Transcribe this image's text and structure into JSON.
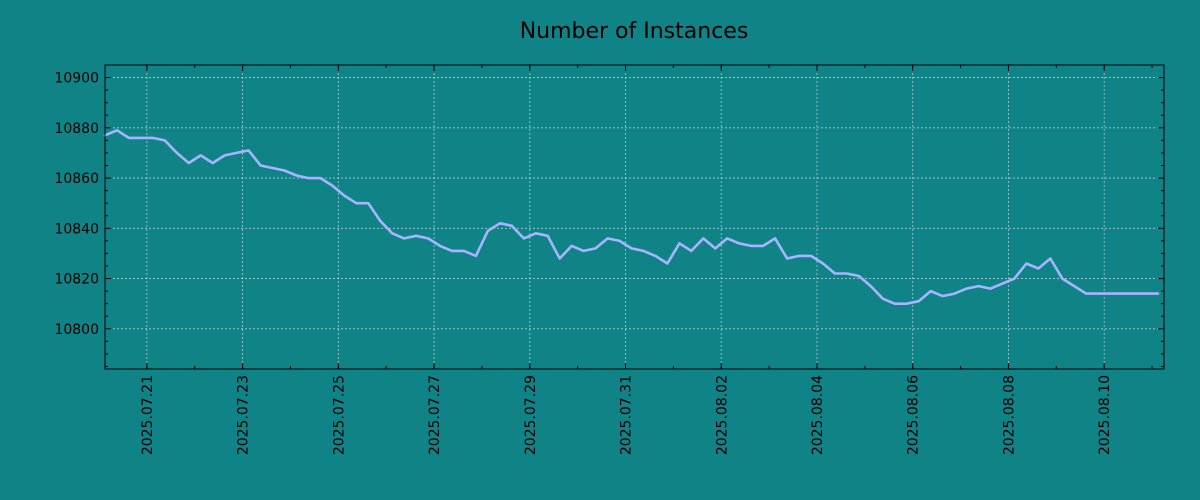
{
  "chart_data": {
    "type": "line",
    "title": "Number of Instances",
    "xlabel": "",
    "ylabel": "",
    "ylim": [
      10784,
      10905
    ],
    "y_ticks": [
      10800,
      10820,
      10840,
      10860,
      10880,
      10900
    ],
    "x_tick_labels": [
      "2025.07.21",
      "2025.07.23",
      "2025.07.25",
      "2025.07.27",
      "2025.07.29",
      "2025.07.31",
      "2025.08.02",
      "2025.08.04",
      "2025.08.06",
      "2025.08.08",
      "2025.08.10"
    ],
    "x_range": [
      "2025.07.20 03:00",
      "2025.08.11 06:00"
    ],
    "grid": true,
    "background": "#108387",
    "line_color": "#a8b4ff",
    "series": [
      {
        "name": "",
        "x": [
          "2025.07.20 03:00",
          "2025.07.20 09:00",
          "2025.07.20 15:00",
          "2025.07.20 21:00",
          "2025.07.21 03:00",
          "2025.07.21 09:00",
          "2025.07.21 15:00",
          "2025.07.21 21:00",
          "2025.07.22 03:00",
          "2025.07.22 09:00",
          "2025.07.22 15:00",
          "2025.07.22 21:00",
          "2025.07.23 03:00",
          "2025.07.23 09:00",
          "2025.07.23 15:00",
          "2025.07.23 21:00",
          "2025.07.24 03:00",
          "2025.07.24 09:00",
          "2025.07.24 15:00",
          "2025.07.24 21:00",
          "2025.07.25 03:00",
          "2025.07.25 09:00",
          "2025.07.25 15:00",
          "2025.07.25 21:00",
          "2025.07.26 03:00",
          "2025.07.26 09:00",
          "2025.07.26 15:00",
          "2025.07.26 21:00",
          "2025.07.27 03:00",
          "2025.07.27 09:00",
          "2025.07.27 15:00",
          "2025.07.27 21:00",
          "2025.07.28 03:00",
          "2025.07.28 09:00",
          "2025.07.28 15:00",
          "2025.07.28 21:00",
          "2025.07.29 03:00",
          "2025.07.29 09:00",
          "2025.07.29 15:00",
          "2025.07.29 21:00",
          "2025.07.30 03:00",
          "2025.07.30 09:00",
          "2025.07.30 15:00",
          "2025.07.30 21:00",
          "2025.07.31 03:00",
          "2025.07.31 09:00",
          "2025.07.31 15:00",
          "2025.07.31 21:00",
          "2025.08.01 03:00",
          "2025.08.01 09:00",
          "2025.08.01 15:00",
          "2025.08.01 21:00",
          "2025.08.02 03:00",
          "2025.08.02 09:00",
          "2025.08.02 15:00",
          "2025.08.02 21:00",
          "2025.08.03 03:00",
          "2025.08.03 09:00",
          "2025.08.03 15:00",
          "2025.08.03 21:00",
          "2025.08.04 03:00",
          "2025.08.04 09:00",
          "2025.08.04 15:00",
          "2025.08.04 21:00",
          "2025.08.05 03:00",
          "2025.08.05 09:00",
          "2025.08.05 15:00",
          "2025.08.05 21:00",
          "2025.08.06 03:00",
          "2025.08.06 09:00",
          "2025.08.06 15:00",
          "2025.08.06 21:00",
          "2025.08.07 03:00",
          "2025.08.07 09:00",
          "2025.08.07 15:00",
          "2025.08.07 21:00",
          "2025.08.08 03:00",
          "2025.08.08 09:00",
          "2025.08.08 15:00",
          "2025.08.08 21:00",
          "2025.08.09 03:00",
          "2025.08.09 09:00",
          "2025.08.09 15:00",
          "2025.08.09 21:00",
          "2025.08.10 03:00",
          "2025.08.10 09:00",
          "2025.08.10 15:00",
          "2025.08.10 21:00",
          "2025.08.11 03:00"
        ],
        "y": [
          10877,
          10879,
          10876,
          10876,
          10876,
          10875,
          10870,
          10866,
          10869,
          10866,
          10869,
          10870,
          10871,
          10865,
          10864,
          10863,
          10861,
          10860,
          10860,
          10857,
          10853,
          10850,
          10850,
          10843,
          10838,
          10836,
          10837,
          10836,
          10833,
          10831,
          10831,
          10829,
          10839,
          10842,
          10841,
          10836,
          10838,
          10837,
          10828,
          10833,
          10831,
          10832,
          10836,
          10835,
          10832,
          10831,
          10829,
          10826,
          10834,
          10831,
          10836,
          10832,
          10836,
          10834,
          10833,
          10833,
          10836,
          10828,
          10829,
          10829,
          10826,
          10822,
          10822,
          10821,
          10817,
          10812,
          10810,
          10810,
          10811,
          10815,
          10813,
          10814,
          10816,
          10817,
          10816,
          10818,
          10820,
          10826,
          10824,
          10828,
          10820,
          10817,
          10814,
          10814,
          10814,
          10814,
          10814,
          10814,
          10814
        ],
        "color": "#a8b4ff"
      }
    ]
  }
}
